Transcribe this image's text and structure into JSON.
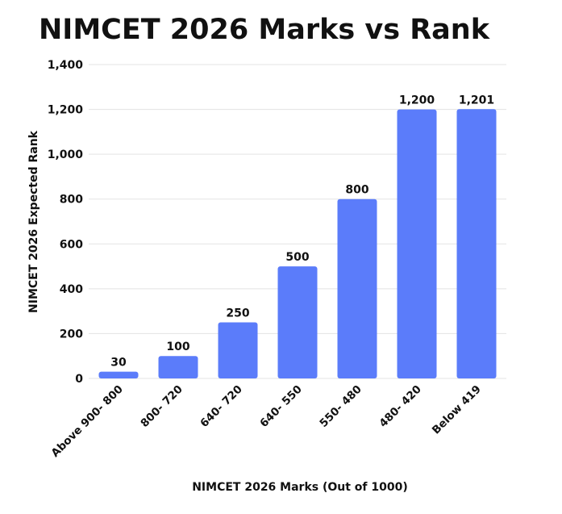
{
  "chart_data": {
    "type": "bar",
    "title": "NIMCET 2026 Marks vs Rank",
    "xlabel": "NIMCET 2026 Marks (Out of 1000)",
    "ylabel": "NIMCET 2026 Expected Rank",
    "categories": [
      "Above 900- 800",
      "800- 720",
      "640- 720",
      "640- 550",
      "550- 480",
      "480- 420",
      "Below 419"
    ],
    "values": [
      30,
      100,
      250,
      500,
      800,
      1200,
      1201
    ],
    "data_labels": [
      "30",
      "100",
      "250",
      "500",
      "800",
      "1,200",
      "1,201"
    ],
    "ylim": [
      0,
      1400
    ],
    "yticks": [
      0,
      200,
      400,
      600,
      800,
      1000,
      1200,
      1400
    ],
    "ytick_labels": [
      "0",
      "200",
      "400",
      "600",
      "800",
      "1,000",
      "1,200",
      "1,400"
    ],
    "grid": true,
    "legend": "none",
    "bar_color": "#5b7cfa"
  }
}
